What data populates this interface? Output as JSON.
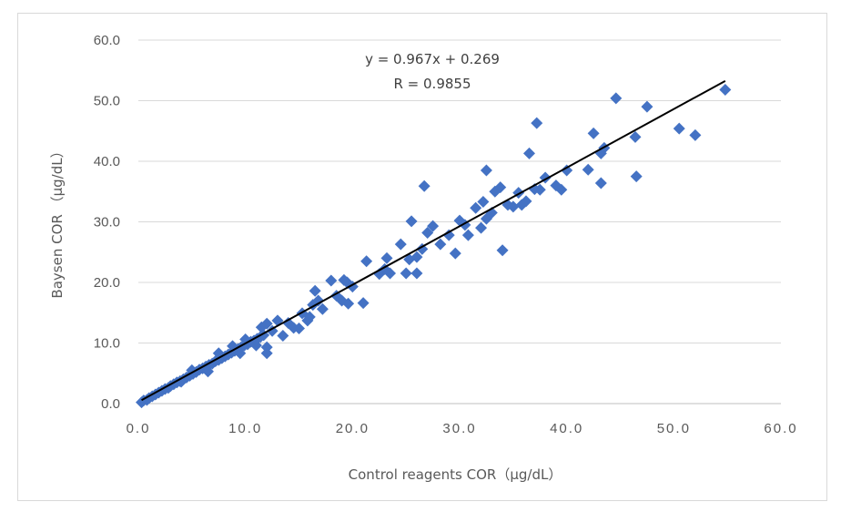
{
  "chart_data": {
    "type": "scatter",
    "xlabel": "Control reagents COR（µg/dL）",
    "ylabel": "Baysen COR （µg/dL）",
    "xlim": [
      0,
      60
    ],
    "ylim": [
      0,
      60
    ],
    "x_ticks": [
      "0.0",
      "10.0",
      "20.0",
      "30.0",
      "40.0",
      "50.0",
      "60.0"
    ],
    "y_ticks": [
      "0.0",
      "10.0",
      "20.0",
      "30.0",
      "40.0",
      "50.0",
      "60.0"
    ],
    "grid": "horizontal",
    "marker_color": "#4472c4",
    "trendline": {
      "slope": 0.967,
      "intercept": 0.269,
      "x_range": [
        0.3,
        54.8
      ],
      "color": "#000000"
    },
    "annotations": [
      "y = 0.967x + 0.269",
      "R = 0.9855"
    ],
    "points": [
      [
        0.3,
        0.2
      ],
      [
        0.5,
        0.5
      ],
      [
        0.8,
        0.6
      ],
      [
        1.0,
        0.9
      ],
      [
        1.3,
        1.2
      ],
      [
        1.6,
        1.5
      ],
      [
        1.9,
        1.8
      ],
      [
        2.2,
        2.1
      ],
      [
        2.5,
        2.4
      ],
      [
        2.8,
        2.6
      ],
      [
        3.0,
        2.9
      ],
      [
        3.3,
        3.2
      ],
      [
        3.6,
        3.5
      ],
      [
        3.9,
        3.7
      ],
      [
        4.2,
        4.0
      ],
      [
        4.5,
        4.3
      ],
      [
        4.8,
        4.6
      ],
      [
        5.1,
        4.9
      ],
      [
        5.4,
        5.2
      ],
      [
        5.7,
        5.6
      ],
      [
        6.0,
        5.8
      ],
      [
        6.3,
        6.1
      ],
      [
        6.6,
        6.4
      ],
      [
        6.9,
        6.6
      ],
      [
        7.2,
        7.0
      ],
      [
        7.5,
        7.2
      ],
      [
        7.8,
        7.5
      ],
      [
        8.1,
        7.8
      ],
      [
        8.4,
        8.1
      ],
      [
        8.7,
        8.4
      ],
      [
        9.0,
        8.7
      ],
      [
        9.3,
        9.0
      ],
      [
        9.6,
        9.3
      ],
      [
        9.9,
        9.6
      ],
      [
        10.2,
        9.8
      ],
      [
        10.5,
        10.2
      ],
      [
        10.8,
        10.4
      ],
      [
        11.1,
        10.7
      ],
      [
        11.4,
        11.0
      ],
      [
        11.7,
        11.3
      ],
      [
        4.0,
        3.6
      ],
      [
        5.0,
        5.5
      ],
      [
        6.5,
        5.3
      ],
      [
        7.5,
        8.3
      ],
      [
        8.8,
        9.5
      ],
      [
        9.5,
        8.3
      ],
      [
        10.0,
        10.6
      ],
      [
        11.0,
        9.6
      ],
      [
        11.5,
        12.6
      ],
      [
        12.0,
        13.2
      ],
      [
        12.0,
        8.3
      ],
      [
        12.0,
        9.3
      ],
      [
        12.5,
        12.0
      ],
      [
        13.0,
        13.7
      ],
      [
        13.5,
        11.2
      ],
      [
        14.0,
        13.3
      ],
      [
        14.5,
        12.5
      ],
      [
        15.0,
        12.4
      ],
      [
        15.3,
        14.9
      ],
      [
        15.8,
        13.7
      ],
      [
        16.0,
        14.3
      ],
      [
        16.3,
        16.3
      ],
      [
        16.5,
        18.6
      ],
      [
        16.8,
        17.0
      ],
      [
        17.2,
        15.6
      ],
      [
        18.0,
        20.3
      ],
      [
        18.5,
        17.8
      ],
      [
        19.0,
        17.0
      ],
      [
        19.2,
        20.4
      ],
      [
        19.6,
        16.5
      ],
      [
        19.5,
        20.0
      ],
      [
        20.0,
        19.3
      ],
      [
        21.0,
        16.6
      ],
      [
        21.3,
        23.5
      ],
      [
        22.5,
        21.4
      ],
      [
        23.0,
        22.2
      ],
      [
        23.2,
        24.0
      ],
      [
        23.5,
        21.5
      ],
      [
        24.5,
        26.3
      ],
      [
        25.0,
        21.5
      ],
      [
        25.3,
        23.8
      ],
      [
        25.5,
        30.1
      ],
      [
        26.0,
        24.2
      ],
      [
        26.0,
        21.5
      ],
      [
        26.5,
        25.5
      ],
      [
        26.7,
        35.9
      ],
      [
        27.0,
        28.2
      ],
      [
        27.5,
        29.3
      ],
      [
        28.2,
        26.3
      ],
      [
        29.0,
        27.8
      ],
      [
        29.6,
        24.8
      ],
      [
        30.0,
        30.2
      ],
      [
        30.5,
        29.5
      ],
      [
        30.8,
        27.8
      ],
      [
        31.5,
        32.3
      ],
      [
        32.0,
        29.0
      ],
      [
        32.2,
        33.3
      ],
      [
        32.5,
        38.5
      ],
      [
        32.5,
        30.5
      ],
      [
        33.0,
        31.5
      ],
      [
        33.3,
        35.0
      ],
      [
        33.8,
        35.7
      ],
      [
        34.0,
        25.3
      ],
      [
        34.5,
        32.8
      ],
      [
        35.0,
        32.5
      ],
      [
        35.5,
        34.8
      ],
      [
        35.8,
        32.8
      ],
      [
        36.2,
        33.4
      ],
      [
        36.5,
        41.3
      ],
      [
        37.0,
        35.4
      ],
      [
        37.2,
        46.3
      ],
      [
        37.5,
        35.3
      ],
      [
        38.0,
        37.3
      ],
      [
        39.0,
        36.0
      ],
      [
        39.5,
        35.3
      ],
      [
        40.0,
        38.5
      ],
      [
        42.0,
        38.6
      ],
      [
        42.5,
        44.6
      ],
      [
        43.2,
        41.3
      ],
      [
        43.5,
        42.2
      ],
      [
        43.2,
        36.4
      ],
      [
        44.6,
        50.4
      ],
      [
        46.4,
        44.0
      ],
      [
        46.5,
        37.5
      ],
      [
        47.5,
        49.0
      ],
      [
        50.5,
        45.4
      ],
      [
        52.0,
        44.3
      ],
      [
        54.8,
        51.8
      ]
    ]
  }
}
